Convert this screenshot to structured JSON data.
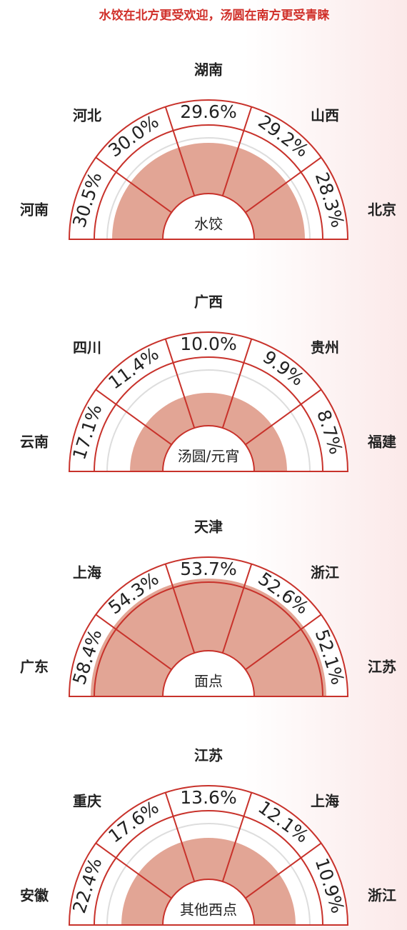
{
  "title": "水饺在北方更受欢迎，汤圆在南方更受青睐",
  "charts": [
    {
      "center": "水饺",
      "regions": [
        {
          "name": "河南",
          "value": "30.5%"
        },
        {
          "name": "河北",
          "value": "30.0%"
        },
        {
          "name": "湖南",
          "value": "29.6%"
        },
        {
          "name": "山西",
          "value": "29.2%"
        },
        {
          "name": "北京",
          "value": "28.3%"
        }
      ]
    },
    {
      "center": "汤圆/元宵",
      "regions": [
        {
          "name": "云南",
          "value": "17.1%"
        },
        {
          "name": "四川",
          "value": "11.4%"
        },
        {
          "name": "广西",
          "value": "10.0%"
        },
        {
          "name": "贵州",
          "value": "9.9%"
        },
        {
          "name": "福建",
          "value": "8.7%"
        }
      ]
    },
    {
      "center": "面点",
      "regions": [
        {
          "name": "广东",
          "value": "58.4%"
        },
        {
          "name": "上海",
          "value": "54.3%"
        },
        {
          "name": "天津",
          "value": "53.7%"
        },
        {
          "name": "浙江",
          "value": "52.6%"
        },
        {
          "name": "江苏",
          "value": "52.1%"
        }
      ]
    },
    {
      "center": "其他西点",
      "regions": [
        {
          "name": "安徽",
          "value": "22.4%"
        },
        {
          "name": "重庆",
          "value": "17.6%"
        },
        {
          "name": "江苏",
          "value": "13.6%"
        },
        {
          "name": "上海",
          "value": "12.1%"
        },
        {
          "name": "浙江",
          "value": "10.9%"
        }
      ]
    }
  ]
}
